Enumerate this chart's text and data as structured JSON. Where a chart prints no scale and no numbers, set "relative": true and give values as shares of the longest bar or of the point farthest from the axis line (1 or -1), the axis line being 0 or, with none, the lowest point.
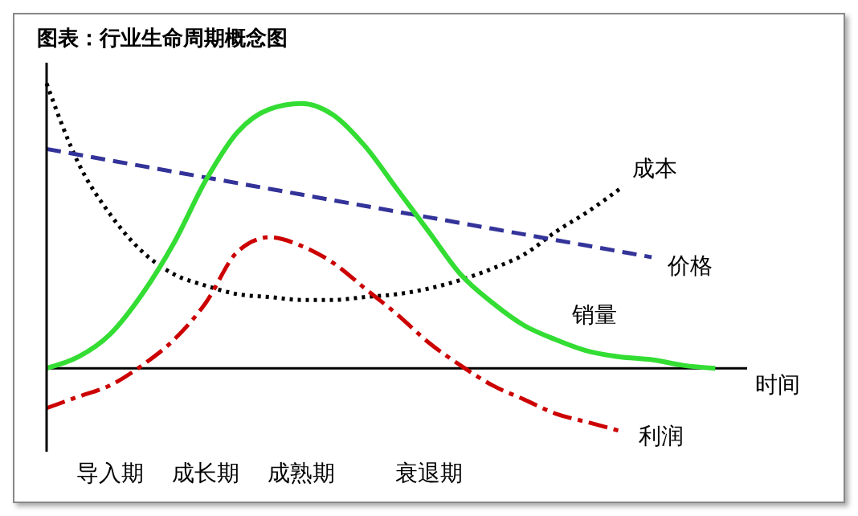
{
  "chart_data": {
    "type": "line",
    "title": "图表：行业生命周期概念图",
    "xlabel": "时间",
    "relative": true,
    "grid": false,
    "legend": false,
    "marker": "none",
    "categories": [
      null,
      null,
      "导入期",
      null,
      null,
      "成长期",
      null,
      null,
      "成熟期",
      null,
      null,
      null,
      "衰退期",
      null,
      null,
      null,
      null,
      null,
      null,
      null,
      null,
      null,
      null
    ],
    "series": [
      {
        "name": "成本",
        "color": "#000000",
        "line_style": "dotted",
        "values": [
          1,
          0.72,
          0.54,
          0.41,
          0.33,
          0.29,
          0.26,
          0.25,
          0.24,
          0.24,
          0.25,
          0.26,
          0.28,
          0.31,
          0.35,
          0.4,
          0.48,
          0.55,
          0.63,
          null,
          null,
          null,
          null
        ]
      },
      {
        "name": "价格",
        "color": "#333399",
        "line_style": "dashed",
        "values": [
          0.77,
          0.75,
          0.73,
          0.71,
          0.69,
          0.67,
          0.65,
          0.63,
          0.61,
          0.59,
          0.57,
          0.55,
          0.53,
          0.51,
          0.49,
          0.47,
          0.45,
          0.43,
          0.41,
          0.39,
          null,
          null,
          null
        ]
      },
      {
        "name": "销量",
        "color": "#33dd33",
        "line_style": "solid",
        "values": [
          0,
          0.04,
          0.12,
          0.26,
          0.44,
          0.66,
          0.83,
          0.91,
          0.93,
          0.89,
          0.78,
          0.63,
          0.48,
          0.33,
          0.23,
          0.15,
          0.1,
          0.06,
          0.04,
          0.03,
          0.01,
          0,
          null
        ]
      },
      {
        "name": "利润",
        "color": "#cc0000",
        "line_style": "dashdot",
        "values": [
          -0.14,
          -0.1,
          -0.06,
          0.01,
          0.1,
          0.23,
          0.41,
          0.46,
          0.43,
          0.37,
          0.28,
          0.19,
          0.09,
          0.01,
          -0.06,
          -0.11,
          -0.16,
          -0.19,
          -0.22,
          null,
          null,
          null,
          null
        ]
      }
    ]
  }
}
